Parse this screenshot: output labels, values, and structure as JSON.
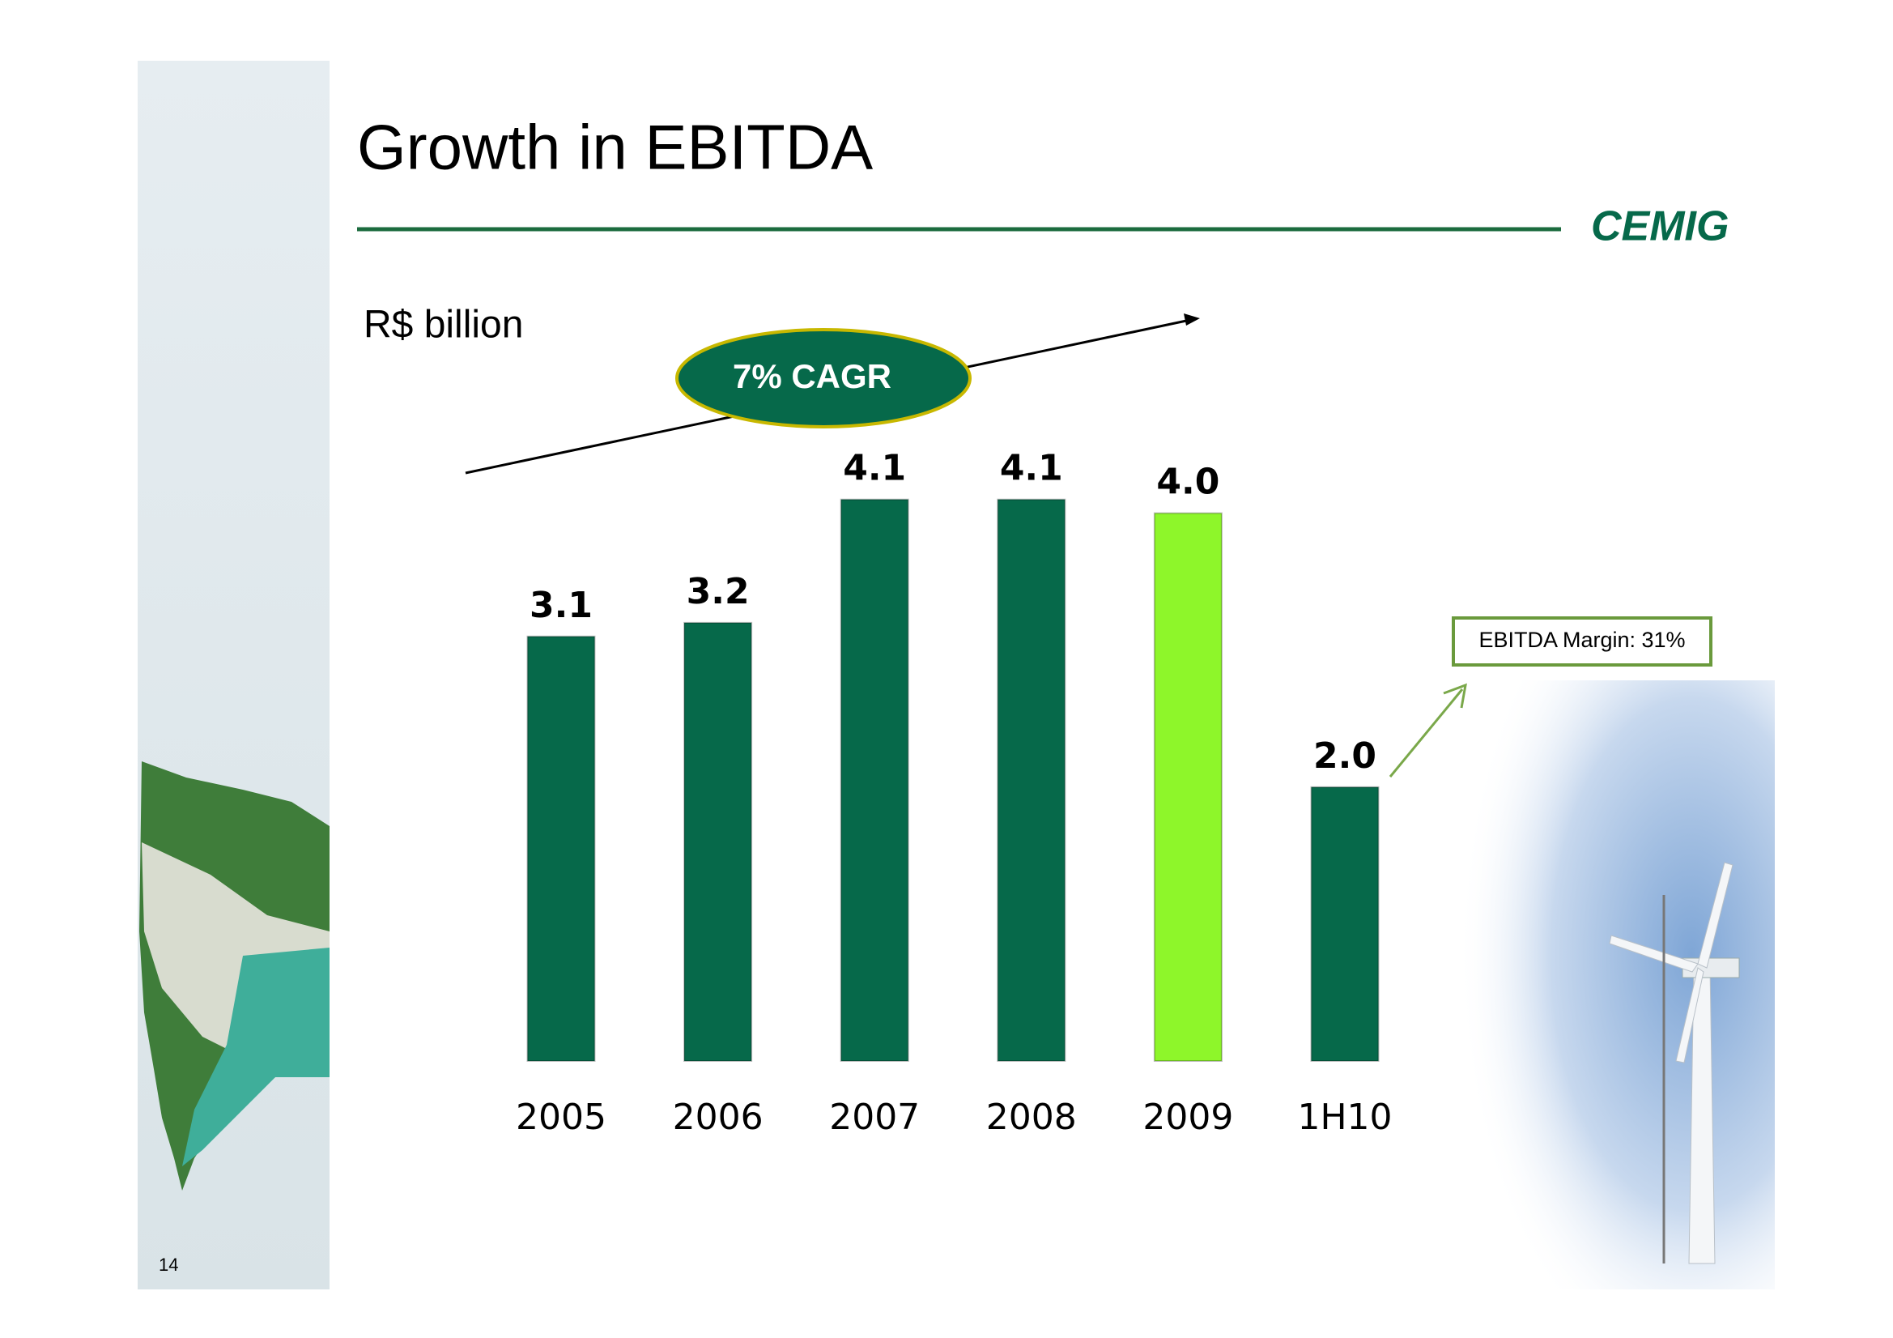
{
  "chart_data": {
    "type": "bar",
    "title": "Growth in EBITDA",
    "unit_label": "R$ billion",
    "categories": [
      "2005",
      "2006",
      "2007",
      "2008",
      "2009",
      "1H10"
    ],
    "values": [
      3.1,
      3.2,
      4.1,
      4.1,
      4.0,
      2.0
    ],
    "value_labels": [
      "3.1",
      "3.2",
      "4.1",
      "4.1",
      "4.0",
      "2.0"
    ],
    "colors": [
      "#06694a",
      "#06694a",
      "#06694a",
      "#06694a",
      "#8ef62a",
      "#06694a"
    ],
    "annotations": [
      "7% CAGR",
      "EBITDA Margin: 31%"
    ]
  },
  "slide": {
    "logo": "CEMIG",
    "page_number": "14"
  }
}
